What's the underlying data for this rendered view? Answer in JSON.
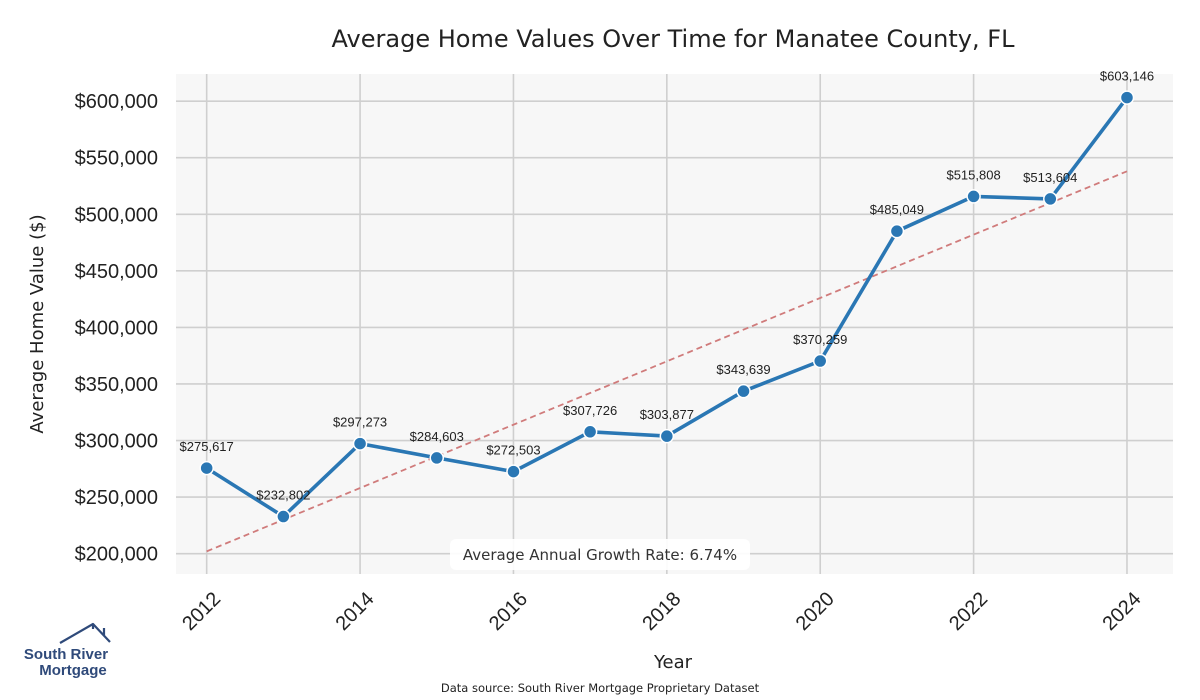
{
  "chart_data": {
    "type": "line",
    "title": "Average Home Values Over Time for Manatee County, FL",
    "xlabel": "Year",
    "ylabel": "Average Home Value ($)",
    "x": [
      2012,
      2013,
      2014,
      2015,
      2016,
      2017,
      2018,
      2019,
      2020,
      2021,
      2022,
      2023,
      2024
    ],
    "values": [
      275617,
      232802,
      297273,
      284603,
      272503,
      307726,
      303877,
      343639,
      370259,
      485049,
      515808,
      513604,
      603146
    ],
    "value_labels": [
      "$275,617",
      "$232,802",
      "$297,273",
      "$284,603",
      "$272,503",
      "$307,726",
      "$303,877",
      "$343,639",
      "$370,259",
      "$485,049",
      "$515,808",
      "$513,604",
      "$603,146"
    ],
    "x_ticks": [
      2012,
      2014,
      2016,
      2018,
      2020,
      2022,
      2024
    ],
    "x_tick_labels": [
      "2012",
      "2014",
      "2016",
      "2018",
      "2020",
      "2022",
      "2024"
    ],
    "y_ticks": [
      200000,
      250000,
      300000,
      350000,
      400000,
      450000,
      500000,
      550000,
      600000
    ],
    "y_tick_labels": [
      "$200,000",
      "$250,000",
      "$300,000",
      "$350,000",
      "$400,000",
      "$450,000",
      "$500,000",
      "$550,000",
      "$600,000"
    ],
    "xlim": [
      2011.6,
      2024.6
    ],
    "ylim": [
      182000,
      624000
    ],
    "trendline": {
      "x": [
        2012,
        2024
      ],
      "y": [
        202000,
        538000
      ],
      "style": "dashed"
    },
    "annotation": "Average Annual Growth Rate: 6.74%",
    "grid": true,
    "line_color": "#2a77b4",
    "trend_color": "#d07b7b",
    "grid_color": "#cfcfcf",
    "plot_bg": "#f7f7f7"
  },
  "footer": {
    "source": "Data source: South River Mortgage Proprietary Dataset"
  },
  "logo": {
    "line1": "South River",
    "line2": "Mortgage",
    "icon": "house-roof-icon",
    "color": "#2f4a7a"
  }
}
